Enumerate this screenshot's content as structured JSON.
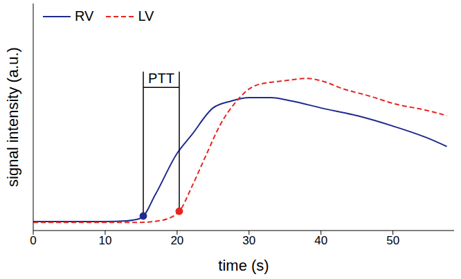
{
  "chart_data": {
    "type": "line",
    "x_label": "time (s)",
    "y_label": "signal intensity (a.u.)",
    "xlim": [
      0,
      58.5
    ],
    "xticks": [
      0,
      10,
      20,
      30,
      40,
      50
    ],
    "ylim": [
      0,
      100
    ],
    "tick_labels": "x",
    "grid": false,
    "legend": "upper left",
    "series": [
      {
        "name": "RV",
        "color": "#1f2a8c",
        "line_style": "solid",
        "x": [
          0,
          5,
          10,
          13,
          15,
          17,
          20,
          22,
          25,
          27.5,
          30,
          33,
          36,
          40,
          45,
          50,
          55,
          57.5
        ],
        "values": [
          4,
          4,
          4,
          4.3,
          5.5,
          16,
          34,
          42,
          54,
          57,
          58.5,
          58.5,
          57,
          54,
          50.6,
          46,
          40.5,
          37
        ]
      },
      {
        "name": "LV",
        "color": "#e8241f",
        "line_style": "dashed",
        "x": [
          0,
          5,
          10,
          15,
          18,
          20.3,
          22,
          24,
          26,
          28,
          31,
          35,
          38,
          40,
          43,
          47,
          50,
          55,
          57.5
        ],
        "values": [
          3.6,
          3.6,
          3.6,
          3.6,
          4.6,
          8.5,
          19,
          33,
          46.6,
          56,
          64,
          66,
          67,
          66,
          62.5,
          59,
          56,
          52.7,
          50.6
        ]
      }
    ],
    "annotations": [
      {
        "text": "PTT",
        "x": [
          15.3,
          20.3
        ],
        "y": [
          6.4,
          8.5
        ],
        "bracket_y": 63,
        "top_y": 70
      }
    ]
  }
}
